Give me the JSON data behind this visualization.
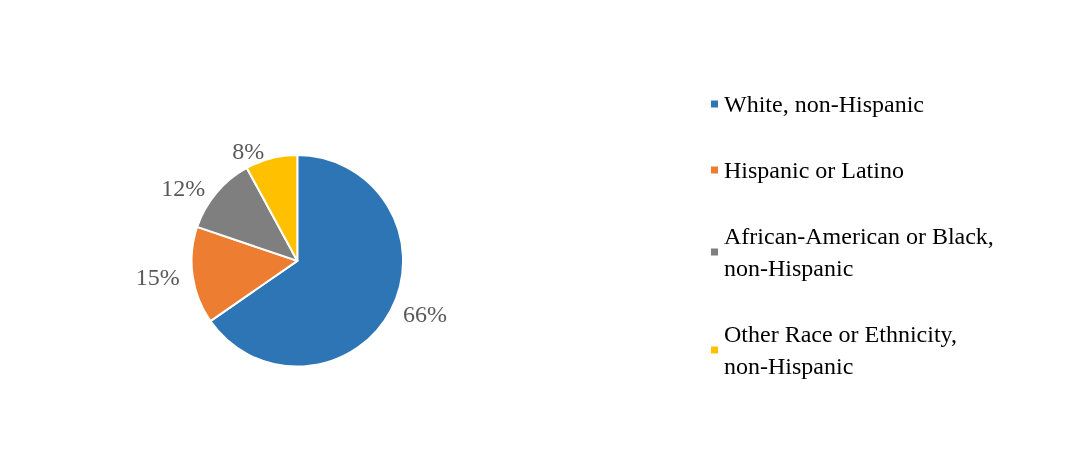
{
  "chart_data": {
    "type": "pie",
    "categories": [
      "White, non-Hispanic",
      "Hispanic or Latino",
      "African-American or Black, non-Hispanic",
      "Other Race or Ethnicity, non-Hispanic"
    ],
    "values": [
      66,
      15,
      12,
      8
    ],
    "colors": [
      "#2e75b6",
      "#ed7d31",
      "#7f7f7f",
      "#ffc000"
    ],
    "value_labels": [
      "66%",
      "15%",
      "12%",
      "8%"
    ],
    "legend": "right"
  }
}
